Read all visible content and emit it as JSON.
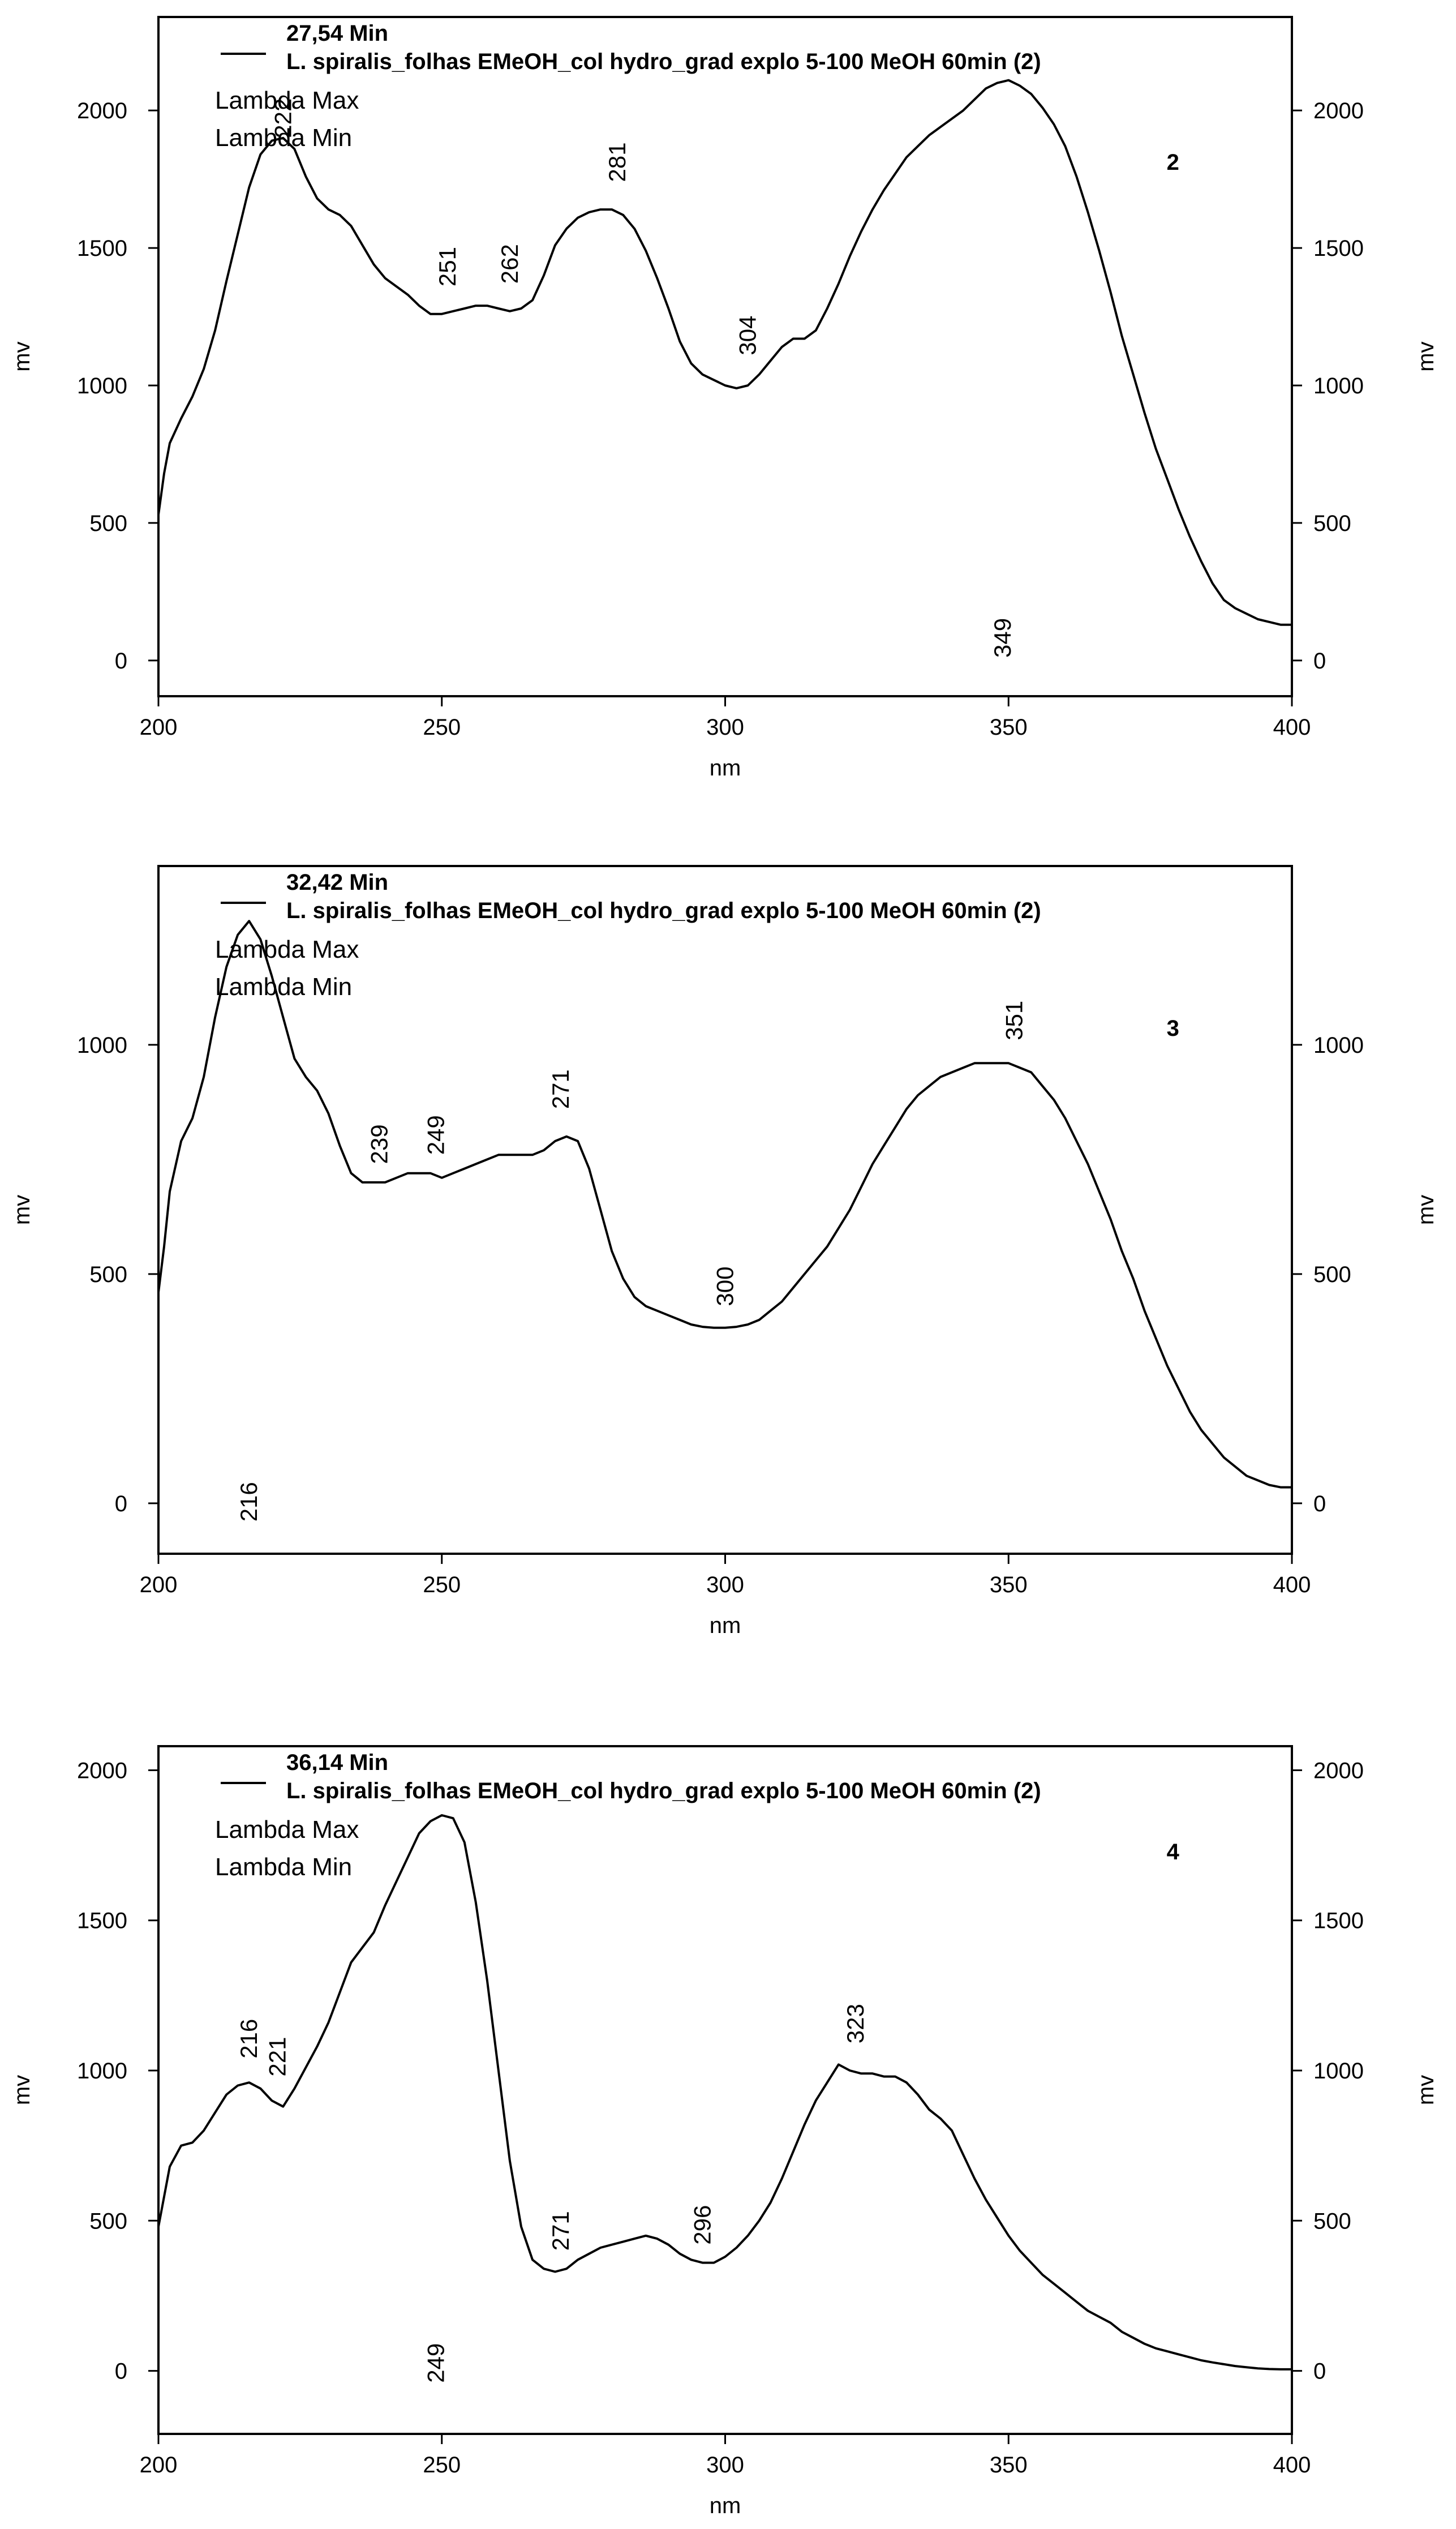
{
  "chart_data": [
    {
      "type": "line",
      "number_label": "2",
      "legend_time": "27,54 Min",
      "legend_sample": "L. spiralis_folhas EMeOH_col hydro_grad explo 5-100 MeOH 60min (2)",
      "legend_lines": [
        "Lambda Max",
        "Lambda Min"
      ],
      "xlabel": "nm",
      "ylabel": "mv",
      "xlim": [
        200,
        400
      ],
      "ylim": [
        -130,
        2340
      ],
      "x_ticks": [
        200,
        250,
        300,
        350,
        400
      ],
      "y_ticks": [
        0,
        500,
        1000,
        1500,
        2000
      ],
      "y_tick_labels_left": [
        "0",
        "500",
        "1000",
        "1500",
        "2000"
      ],
      "y_tick_labels_right": [
        "0",
        "500",
        "1000",
        "1500",
        "2000"
      ],
      "x_tick_labels": [
        "200",
        "250",
        "300",
        "350",
        "400"
      ],
      "peak_labels": [
        {
          "text": "222",
          "x": 222,
          "y": 1900
        },
        {
          "text": "281",
          "x": 281,
          "y": 1740
        },
        {
          "text": "251",
          "x": 251,
          "y": 1360
        },
        {
          "text": "262",
          "x": 262,
          "y": 1370
        },
        {
          "text": "304",
          "x": 304,
          "y": 1110
        },
        {
          "text": "349",
          "x": 349,
          "y": 10
        }
      ],
      "series": [
        {
          "x": [
            200,
            201,
            202,
            204,
            206,
            208,
            210,
            212,
            214,
            216,
            218,
            220,
            222,
            224,
            226,
            228,
            230,
            232,
            234,
            236,
            238,
            240,
            242,
            244,
            246,
            248,
            250,
            252,
            254,
            256,
            258,
            260,
            262,
            264,
            266,
            268,
            270,
            272,
            274,
            276,
            278,
            280,
            282,
            284,
            286,
            288,
            290,
            292,
            294,
            296,
            298,
            300,
            302,
            304,
            306,
            308,
            310,
            312,
            314,
            316,
            318,
            320,
            322,
            324,
            326,
            328,
            330,
            332,
            334,
            336,
            338,
            340,
            342,
            344,
            346,
            348,
            350,
            352,
            354,
            356,
            358,
            360,
            362,
            364,
            366,
            368,
            370,
            372,
            374,
            376,
            378,
            380,
            382,
            384,
            386,
            388,
            390,
            392,
            394,
            396,
            398,
            400
          ],
          "y": [
            530,
            680,
            790,
            880,
            960,
            1060,
            1200,
            1380,
            1550,
            1720,
            1840,
            1890,
            1900,
            1860,
            1760,
            1680,
            1640,
            1620,
            1580,
            1510,
            1440,
            1390,
            1360,
            1330,
            1290,
            1260,
            1260,
            1270,
            1280,
            1290,
            1290,
            1280,
            1270,
            1280,
            1310,
            1400,
            1510,
            1570,
            1610,
            1630,
            1640,
            1640,
            1620,
            1570,
            1490,
            1390,
            1280,
            1160,
            1080,
            1040,
            1020,
            1000,
            990,
            1000,
            1040,
            1090,
            1140,
            1170,
            1170,
            1200,
            1280,
            1370,
            1470,
            1560,
            1640,
            1710,
            1770,
            1830,
            1870,
            1910,
            1940,
            1970,
            2000,
            2040,
            2080,
            2100,
            2110,
            2090,
            2060,
            2010,
            1950,
            1870,
            1760,
            1630,
            1490,
            1340,
            1180,
            1040,
            900,
            770,
            660,
            550,
            450,
            360,
            280,
            220,
            190,
            170,
            150,
            140,
            130,
            130
          ]
        }
      ]
    },
    {
      "type": "line",
      "number_label": "3",
      "legend_time": "32,42 Min",
      "legend_sample": "L. spiralis_folhas EMeOH_col hydro_grad explo 5-100 MeOH 60min (2)",
      "legend_lines": [
        "Lambda Max",
        "Lambda Min"
      ],
      "xlabel": "nm",
      "ylabel": "mv",
      "xlim": [
        200,
        400
      ],
      "ylim": [
        -110,
        1390
      ],
      "x_ticks": [
        200,
        250,
        300,
        350,
        400
      ],
      "y_ticks": [
        0,
        500,
        1000
      ],
      "y_tick_labels_left": [
        "0",
        "500",
        "1000"
      ],
      "y_tick_labels_right": [
        "0",
        "500",
        "1000"
      ],
      "x_tick_labels": [
        "200",
        "250",
        "300",
        "350",
        "400"
      ],
      "peak_labels": [
        {
          "text": "351",
          "x": 351,
          "y": 1010
        },
        {
          "text": "271",
          "x": 271,
          "y": 860
        },
        {
          "text": "239",
          "x": 239,
          "y": 740
        },
        {
          "text": "249",
          "x": 249,
          "y": 760
        },
        {
          "text": "300",
          "x": 300,
          "y": 430
        },
        {
          "text": "216",
          "x": 216,
          "y": -40
        }
      ],
      "series": [
        {
          "x": [
            200,
            201,
            202,
            204,
            206,
            208,
            210,
            212,
            214,
            216,
            218,
            220,
            222,
            224,
            226,
            228,
            230,
            232,
            234,
            236,
            238,
            240,
            242,
            244,
            246,
            248,
            250,
            252,
            254,
            256,
            258,
            260,
            262,
            264,
            266,
            268,
            270,
            272,
            274,
            276,
            278,
            280,
            282,
            284,
            286,
            288,
            290,
            292,
            294,
            296,
            298,
            300,
            302,
            304,
            306,
            308,
            310,
            312,
            314,
            316,
            318,
            320,
            322,
            324,
            326,
            328,
            330,
            332,
            334,
            336,
            338,
            340,
            342,
            344,
            346,
            348,
            350,
            352,
            354,
            356,
            358,
            360,
            362,
            364,
            366,
            368,
            370,
            372,
            374,
            376,
            378,
            380,
            382,
            384,
            386,
            388,
            390,
            392,
            394,
            396,
            398,
            400
          ],
          "y": [
            460,
            560,
            680,
            790,
            840,
            930,
            1060,
            1170,
            1240,
            1270,
            1230,
            1150,
            1060,
            970,
            930,
            900,
            850,
            780,
            720,
            700,
            700,
            700,
            710,
            720,
            720,
            720,
            710,
            720,
            730,
            740,
            750,
            760,
            760,
            760,
            760,
            770,
            790,
            800,
            790,
            730,
            640,
            550,
            490,
            450,
            430,
            420,
            410,
            400,
            390,
            385,
            383,
            383,
            385,
            390,
            400,
            420,
            440,
            470,
            500,
            530,
            560,
            600,
            640,
            690,
            740,
            780,
            820,
            860,
            890,
            910,
            930,
            940,
            950,
            960,
            960,
            960,
            960,
            950,
            940,
            910,
            880,
            840,
            790,
            740,
            680,
            620,
            550,
            490,
            420,
            360,
            300,
            250,
            200,
            160,
            130,
            100,
            80,
            60,
            50,
            40,
            35,
            35
          ]
        }
      ]
    },
    {
      "type": "line",
      "number_label": "4",
      "legend_time": "36,14 Min",
      "legend_sample": "L. spiralis_folhas EMeOH_col hydro_grad explo 5-100 MeOH 60min (2)",
      "legend_lines": [
        "Lambda Max",
        "Lambda Min"
      ],
      "xlabel": "nm",
      "ylabel": "mv",
      "xlim": [
        200,
        400
      ],
      "ylim": [
        -210,
        2080
      ],
      "x_ticks": [
        200,
        250,
        300,
        350,
        400
      ],
      "y_ticks": [
        0,
        500,
        1000,
        1500,
        2000
      ],
      "y_tick_labels_left": [
        "0",
        "500",
        "1000",
        "1500",
        "2000"
      ],
      "y_tick_labels_right": [
        "0",
        "500",
        "1000",
        "1500",
        "2000"
      ],
      "x_tick_labels": [
        "200",
        "250",
        "300",
        "350",
        "400"
      ],
      "peak_labels": [
        {
          "text": "216",
          "x": 216,
          "y": 1040
        },
        {
          "text": "221",
          "x": 221,
          "y": 980
        },
        {
          "text": "323",
          "x": 323,
          "y": 1090
        },
        {
          "text": "271",
          "x": 271,
          "y": 400
        },
        {
          "text": "296",
          "x": 296,
          "y": 420
        },
        {
          "text": "249",
          "x": 249,
          "y": -40
        }
      ],
      "series": [
        {
          "x": [
            200,
            201,
            202,
            204,
            206,
            208,
            210,
            212,
            214,
            216,
            218,
            220,
            222,
            224,
            226,
            228,
            230,
            232,
            234,
            236,
            238,
            240,
            242,
            244,
            246,
            248,
            250,
            252,
            254,
            256,
            258,
            260,
            262,
            264,
            266,
            268,
            270,
            272,
            274,
            276,
            278,
            280,
            282,
            284,
            286,
            288,
            290,
            292,
            294,
            296,
            298,
            300,
            302,
            304,
            306,
            308,
            310,
            312,
            314,
            316,
            318,
            320,
            322,
            324,
            326,
            328,
            330,
            332,
            334,
            336,
            338,
            340,
            342,
            344,
            346,
            348,
            350,
            352,
            354,
            356,
            358,
            360,
            362,
            364,
            366,
            368,
            370,
            372,
            374,
            376,
            378,
            380,
            382,
            384,
            386,
            388,
            390,
            392,
            394,
            396,
            398,
            400
          ],
          "y": [
            480,
            580,
            680,
            750,
            760,
            800,
            860,
            920,
            950,
            960,
            940,
            900,
            880,
            940,
            1010,
            1080,
            1160,
            1260,
            1360,
            1410,
            1460,
            1550,
            1630,
            1710,
            1790,
            1830,
            1850,
            1840,
            1760,
            1560,
            1300,
            1000,
            700,
            480,
            370,
            340,
            330,
            340,
            370,
            390,
            410,
            420,
            430,
            440,
            450,
            440,
            420,
            390,
            370,
            360,
            360,
            380,
            410,
            450,
            500,
            560,
            640,
            730,
            820,
            900,
            960,
            1020,
            1000,
            990,
            990,
            980,
            980,
            960,
            920,
            870,
            840,
            800,
            720,
            640,
            570,
            510,
            450,
            400,
            360,
            320,
            290,
            260,
            230,
            200,
            180,
            160,
            130,
            110,
            90,
            75,
            65,
            55,
            45,
            35,
            28,
            22,
            16,
            12,
            8,
            6,
            5,
            5
          ]
        }
      ]
    }
  ]
}
